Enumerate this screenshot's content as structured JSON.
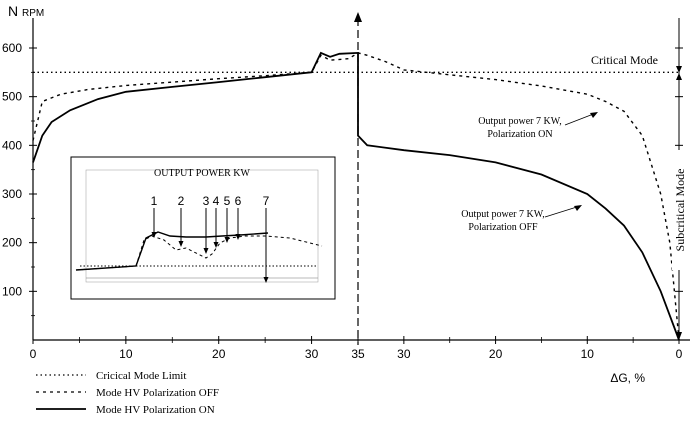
{
  "chart_data": {
    "type": "line",
    "title": "",
    "ylabel": "N",
    "ylabel_unit": "RPM",
    "xlabel": "ΔG, %",
    "ylim": [
      0,
      650
    ],
    "y_ticks": [
      100,
      200,
      300,
      400,
      500,
      600
    ],
    "x_tick_labels": [
      "0",
      "10",
      "20",
      "30",
      "35",
      "30",
      "20",
      "10",
      "0"
    ],
    "x_axis_note": "left segment: 0-35 increasing, right segment: 35-0 decreasing",
    "critical_line_y": 550,
    "series": [
      {
        "name": "Cricical Mode Limit",
        "style": "dotted",
        "points": [
          [
            0,
            550
          ],
          [
            70,
            550
          ]
        ]
      },
      {
        "name": "Mode HV Polarization OFF",
        "style": "dashed",
        "points": [
          [
            0,
            410
          ],
          [
            1,
            490
          ],
          [
            3,
            505
          ],
          [
            6,
            515
          ],
          [
            10,
            523
          ],
          [
            15,
            530
          ],
          [
            20,
            537
          ],
          [
            25,
            543
          ],
          [
            30,
            550
          ],
          [
            31,
            585
          ],
          [
            32,
            575
          ],
          [
            34,
            578
          ],
          [
            35,
            590
          ],
          [
            36,
            585
          ],
          [
            38,
            572
          ],
          [
            40,
            555
          ],
          [
            45,
            545
          ],
          [
            50,
            535
          ],
          [
            55,
            522
          ],
          [
            60,
            505
          ],
          [
            62,
            490
          ],
          [
            64,
            470
          ],
          [
            66,
            420
          ],
          [
            68,
            300
          ],
          [
            69,
            200
          ],
          [
            70,
            0
          ]
        ]
      },
      {
        "name": "Mode HV Polarization ON",
        "style": "solid",
        "points": [
          [
            0,
            365
          ],
          [
            1,
            420
          ],
          [
            2,
            448
          ],
          [
            4,
            472
          ],
          [
            7,
            495
          ],
          [
            10,
            510
          ],
          [
            15,
            520
          ],
          [
            20,
            530
          ],
          [
            25,
            540
          ],
          [
            30,
            550
          ],
          [
            31,
            590
          ],
          [
            32,
            582
          ],
          [
            33,
            588
          ],
          [
            35,
            590
          ],
          [
            35,
            420
          ],
          [
            36,
            400
          ],
          [
            40,
            390
          ],
          [
            45,
            380
          ],
          [
            50,
            365
          ],
          [
            55,
            340
          ],
          [
            60,
            300
          ],
          [
            62,
            270
          ],
          [
            64,
            235
          ],
          [
            66,
            180
          ],
          [
            68,
            100
          ],
          [
            70,
            0
          ]
        ]
      }
    ],
    "annotations": {
      "critical_mode": "Critical Mode",
      "subcritical_mode": "Subcritical Mode",
      "off_label_line1": "Output power 7 KW,",
      "off_label_line2": "Polarization OFF",
      "on_label_line1": "Output power 7 KW,",
      "on_label_line2": "Polarization ON"
    },
    "inset": {
      "title": "OUTPUT POWER KW",
      "markers": [
        "1",
        "2",
        "3",
        "4",
        "5",
        "6",
        "7"
      ]
    },
    "legend": [
      {
        "label": "Cricical Mode Limit",
        "style": "dotted"
      },
      {
        "label": "Mode HV Polarization OFF",
        "style": "dashed"
      },
      {
        "label": "Mode HV Polarization ON",
        "style": "solid"
      }
    ]
  }
}
